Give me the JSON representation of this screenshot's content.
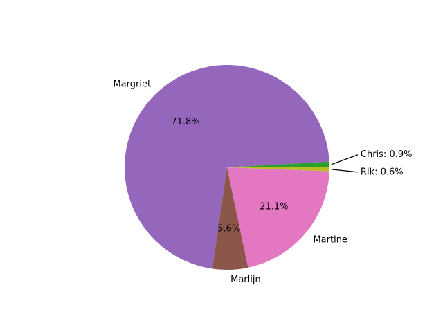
{
  "chart_data": {
    "type": "pie",
    "slices": [
      {
        "label": "Chris",
        "value": 0.9,
        "color": "#2ca02c",
        "display": "Chris: 0.9%"
      },
      {
        "label": "Margriet",
        "value": 71.8,
        "color": "#9467bd",
        "display": "Margriet",
        "pct_label": "71.8%"
      },
      {
        "label": "Marlijn",
        "value": 5.6,
        "color": "#8c564b",
        "display": "Marlijn",
        "pct_label": "5.6%"
      },
      {
        "label": "Martine",
        "value": 21.1,
        "color": "#e377c2",
        "display": "Martine",
        "pct_label": "21.1%"
      },
      {
        "label": "Rik",
        "value": 0.6,
        "color": "#bcbd22",
        "display": "Rik: 0.6%"
      }
    ],
    "start_angle_deg": 0,
    "direction": "counterclockwise"
  }
}
